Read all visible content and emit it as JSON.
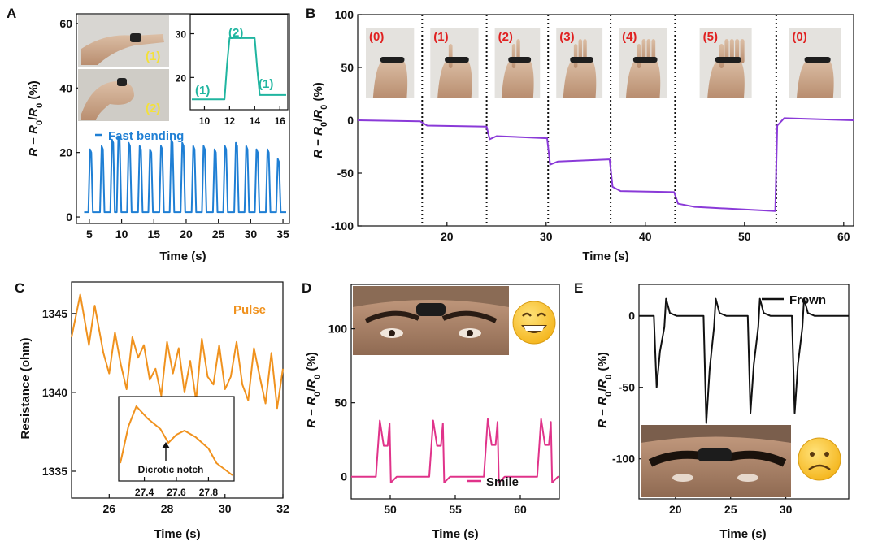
{
  "chart_data": [
    {
      "panel": "A",
      "type": "line",
      "ylabel_tokens": [
        "R",
        " − ",
        "R",
        "0",
        "/",
        "R",
        "0",
        " (%)"
      ],
      "xlabel": "Time (s)",
      "xlim": [
        3,
        36
      ],
      "ylim": [
        -2,
        63
      ],
      "xticks": [
        5,
        10,
        15,
        20,
        25,
        30,
        35
      ],
      "yticks": [
        0,
        20,
        40,
        60
      ],
      "series": [
        {
          "name": "Fast bending",
          "color": "#1f7fd4",
          "peaks_x": [
            5.2,
            7.0,
            8.6,
            9.6,
            11.2,
            12.9,
            14.5,
            16.2,
            17.8,
            19.5,
            21.2,
            22.8,
            24.5,
            26.1,
            27.8,
            29.4,
            31.0,
            32.7,
            34.3
          ],
          "peaks_y": [
            21,
            22,
            24,
            25,
            23,
            22,
            21,
            22,
            24,
            23,
            22,
            22,
            21,
            22,
            23,
            22,
            21,
            21,
            18
          ]
        }
      ],
      "photo_labels": [
        "(1)",
        "(2)"
      ],
      "inset": {
        "type": "line",
        "color": "#20b5a0",
        "xlim": [
          9,
          16.5
        ],
        "ylim": [
          13,
          34
        ],
        "xticks": [
          10,
          12,
          14,
          16
        ],
        "yticks": [
          20,
          30
        ],
        "x": [
          9.0,
          11.6,
          11.8,
          12.0,
          14.0,
          14.2,
          14.4,
          16.5
        ],
        "y": [
          15,
          15,
          23,
          29,
          29,
          22,
          16,
          16
        ],
        "labels": [
          "(1)",
          "(2)",
          "(1)"
        ]
      }
    },
    {
      "panel": "B",
      "type": "line",
      "ylabel_tokens": [
        "R",
        " − ",
        "R",
        "0",
        "/",
        "R",
        "0",
        " (%)"
      ],
      "xlabel": "Time (s)",
      "xlim": [
        11,
        61
      ],
      "ylim": [
        -100,
        100
      ],
      "xticks": [
        20,
        30,
        40,
        50,
        60
      ],
      "yticks": [
        -100,
        -50,
        0,
        50,
        100
      ],
      "color": "#8a3ad8",
      "dividers_x": [
        17.5,
        24,
        30.2,
        36.5,
        43,
        53.2
      ],
      "photo_labels": [
        "(0)",
        "(1)",
        "(2)",
        "(3)",
        "(4)",
        "(5)",
        "(0)"
      ],
      "x": [
        11,
        17.3,
        18,
        24,
        24.3,
        25,
        30.1,
        30.4,
        31.2,
        36.4,
        36.7,
        37.5,
        42.9,
        43.3,
        45,
        53.1,
        53.3,
        54,
        61
      ],
      "y": [
        0,
        -1,
        -5,
        -6,
        -18,
        -15,
        -17,
        -42,
        -39,
        -37,
        -63,
        -67,
        -68,
        -79,
        -82,
        -86,
        -5,
        2,
        0
      ]
    },
    {
      "panel": "C",
      "type": "line",
      "ylabel": "Resistance (ohm)",
      "xlabel": "Time (s)",
      "xlim": [
        24.7,
        32
      ],
      "ylim": [
        1333.3,
        1347
      ],
      "xticks": [
        26,
        28,
        30,
        32
      ],
      "yticks": [
        1335,
        1340,
        1345
      ],
      "series": [
        {
          "name": "Pulse",
          "color": "#f0921e",
          "x": [
            24.7,
            25.0,
            25.3,
            25.5,
            25.8,
            26.0,
            26.2,
            26.4,
            26.6,
            26.8,
            27.0,
            27.2,
            27.4,
            27.6,
            27.8,
            28.0,
            28.2,
            28.4,
            28.6,
            28.8,
            29.0,
            29.2,
            29.4,
            29.6,
            29.8,
            30.0,
            30.2,
            30.4,
            30.6,
            30.8,
            31.0,
            31.2,
            31.4,
            31.6,
            31.8,
            32.0
          ],
          "y": [
            1343.5,
            1346.2,
            1343.0,
            1345.5,
            1342.5,
            1341.2,
            1343.8,
            1341.8,
            1340.2,
            1343.5,
            1342.2,
            1343.0,
            1340.8,
            1341.5,
            1339.8,
            1343.2,
            1341.2,
            1342.8,
            1340.0,
            1342.0,
            1339.5,
            1343.4,
            1341.0,
            1340.5,
            1343.0,
            1340.2,
            1341.0,
            1343.2,
            1340.5,
            1339.5,
            1342.8,
            1341.0,
            1339.3,
            1342.5,
            1339.0,
            1341.5
          ]
        }
      ],
      "inset": {
        "type": "line",
        "color": "#f0921e",
        "xlim": [
          27.25,
          27.95
        ],
        "ylim": [
          0,
          1
        ],
        "xticks": [
          27.4,
          27.6,
          27.8
        ],
        "x": [
          27.25,
          27.3,
          27.35,
          27.42,
          27.5,
          27.55,
          27.6,
          27.65,
          27.72,
          27.8,
          27.85,
          27.95
        ],
        "y": [
          0.2,
          0.65,
          0.9,
          0.75,
          0.62,
          0.45,
          0.55,
          0.6,
          0.52,
          0.38,
          0.2,
          0.05
        ],
        "annotation": "Dicrotic notch"
      }
    },
    {
      "panel": "D",
      "type": "line",
      "ylabel_tokens": [
        "R",
        " − ",
        "R",
        "0",
        "/",
        "R",
        "0",
        " (%)"
      ],
      "xlabel": "Time (s)",
      "xlim": [
        47,
        63
      ],
      "ylim": [
        -15,
        130
      ],
      "xticks": [
        50,
        55,
        60
      ],
      "yticks": [
        0,
        50,
        100
      ],
      "series": [
        {
          "name": "Smile",
          "color": "#e0338a",
          "events_x": [
            49.2,
            53.3,
            57.5,
            61.6
          ],
          "peaks_y": [
            38,
            38,
            39,
            39
          ]
        }
      ],
      "emoji": "😁"
    },
    {
      "panel": "E",
      "type": "line",
      "ylabel_tokens": [
        "R",
        " − ",
        "R",
        "0",
        "/",
        "R",
        "0",
        " (%)"
      ],
      "xlabel": "Time (s)",
      "xlim": [
        16.7,
        35.7
      ],
      "ylim": [
        -128,
        22
      ],
      "xticks": [
        20,
        25,
        30
      ],
      "yticks": [
        -100,
        -50,
        0
      ],
      "series": [
        {
          "name": "Frown",
          "color": "#111111",
          "events_x": [
            18.3,
            22.8,
            26.8,
            30.8
          ],
          "dips_y": [
            -50,
            -75,
            -68,
            -68
          ]
        }
      ],
      "emoji": "☹"
    }
  ]
}
